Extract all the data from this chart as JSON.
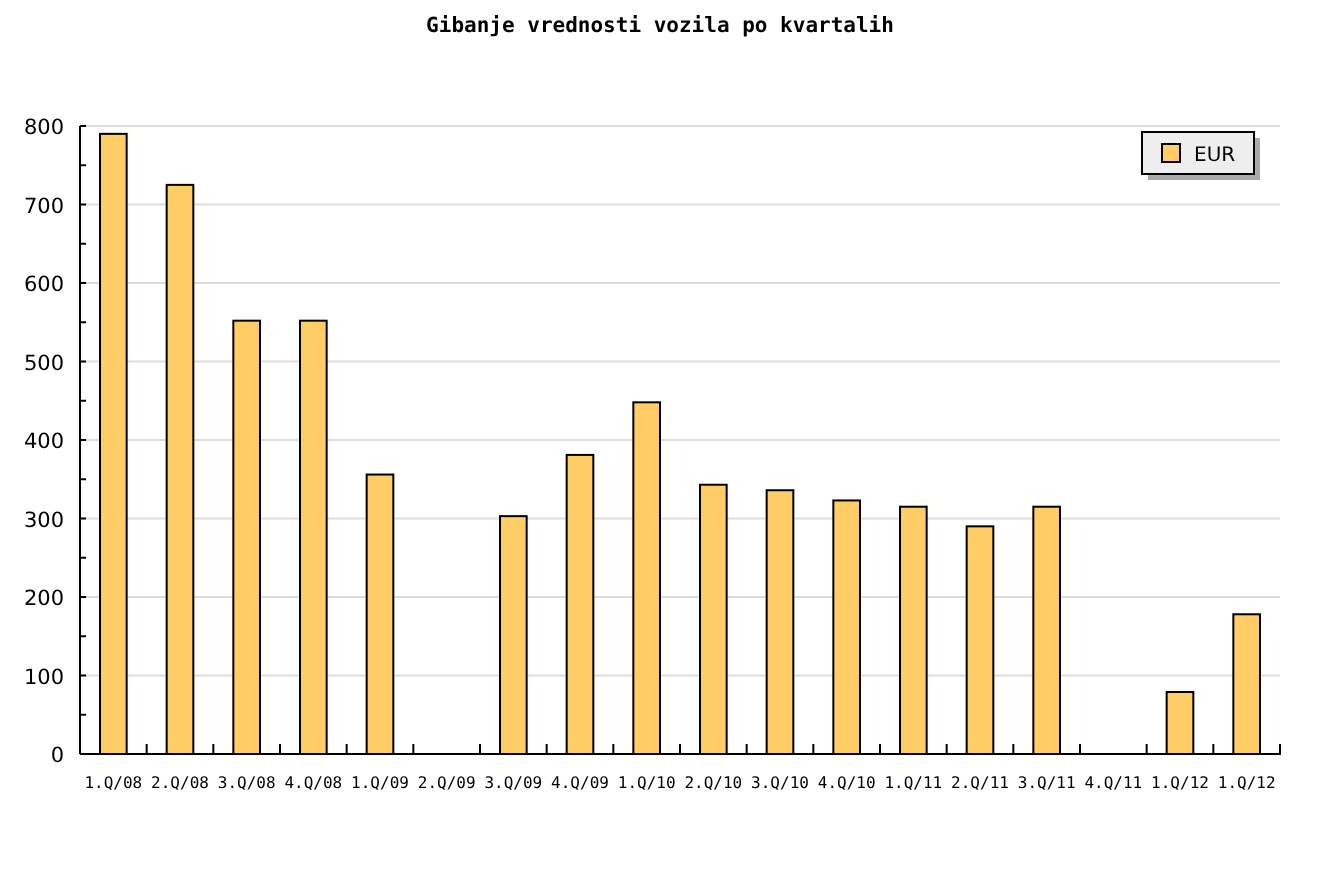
{
  "chart_data": {
    "type": "bar",
    "title": "Gibanje vrednosti vozila po kvartalih",
    "categories": [
      "1.Q/08",
      "2.Q/08",
      "3.Q/08",
      "4.Q/08",
      "1.Q/09",
      "2.Q/09",
      "3.Q/09",
      "4.Q/09",
      "1.Q/10",
      "2.Q/10",
      "3.Q/10",
      "4.Q/10",
      "1.Q/11",
      "2.Q/11",
      "3.Q/11",
      "4.Q/11",
      "1.Q/12",
      "1.Q/12"
    ],
    "series": [
      {
        "name": "EUR",
        "color": "#ffcc66",
        "values": [
          790,
          725,
          552,
          552,
          356,
          null,
          303,
          381,
          448,
          343,
          336,
          323,
          315,
          290,
          315,
          null,
          79,
          178
        ]
      }
    ],
    "ylim": [
      0,
      800
    ],
    "yticks": [
      0,
      {
        "value": 50,
        "label": null
      },
      100,
      {
        "value": 150,
        "label": null
      },
      200,
      {
        "value": 250,
        "label": null
      },
      300,
      {
        "value": 350,
        "label": null
      },
      400,
      {
        "value": 450,
        "label": null
      },
      500,
      {
        "value": 550,
        "label": null
      },
      600,
      {
        "value": 650,
        "label": null
      },
      700,
      {
        "value": 750,
        "label": null
      },
      800
    ],
    "grid": "y",
    "legend": "top right"
  }
}
